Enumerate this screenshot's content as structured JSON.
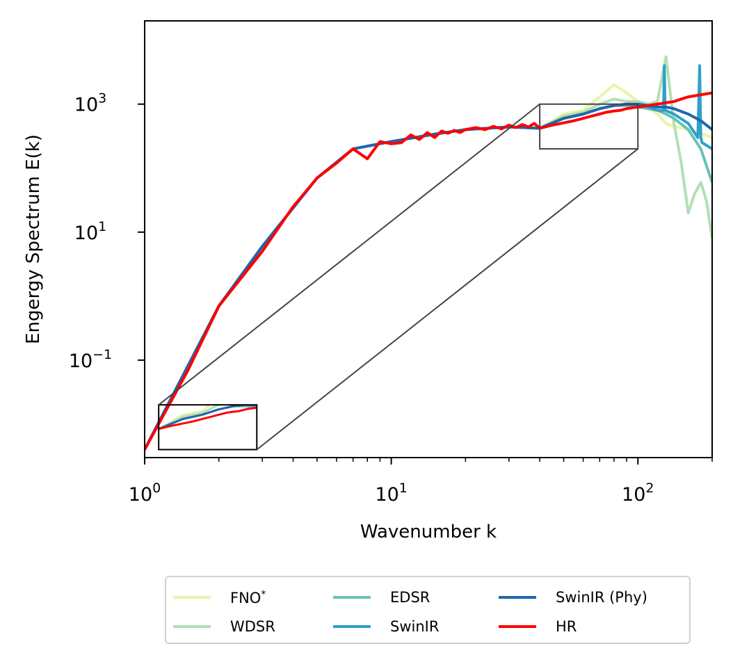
{
  "chart_data": {
    "type": "line",
    "xlabel": "Wavenumber k",
    "ylabel": "Engergy Spectrum E(k)",
    "xscale": "log",
    "yscale": "log",
    "xlim": [
      1,
      200
    ],
    "ylim": [
      0.003,
      20000
    ],
    "x_ticks": [
      {
        "value": 1,
        "base": "10",
        "exp": "0"
      },
      {
        "value": 10,
        "base": "10",
        "exp": "1"
      },
      {
        "value": 100,
        "base": "10",
        "exp": "2"
      }
    ],
    "y_ticks": [
      {
        "value": 0.1,
        "base": "10",
        "exp": "−1"
      },
      {
        "value": 10,
        "base": "10",
        "exp": "1"
      },
      {
        "value": 1000,
        "base": "10",
        "exp": "3"
      }
    ],
    "grid": false,
    "legend_placement": "below",
    "zoom_box": {
      "x": [
        40,
        100
      ],
      "y": [
        200,
        1000
      ]
    },
    "zoom_inset": {
      "x": [
        1.14,
        2.85
      ],
      "y": [
        0.004,
        0.02
      ]
    },
    "series": [
      {
        "name": "FNO",
        "name_sup": "*",
        "color": "#e8f5a8",
        "width": 4,
        "x": [
          1,
          2,
          3,
          5,
          7,
          10,
          15,
          20,
          30,
          40,
          50,
          60,
          70,
          80,
          90,
          100,
          110,
          120,
          130,
          140,
          160,
          180,
          200
        ],
        "y": [
          0.004,
          0.7,
          6,
          70,
          200,
          260,
          340,
          400,
          440,
          420,
          700,
          800,
          1300,
          2000,
          1500,
          1100,
          900,
          700,
          500,
          450,
          400,
          350,
          300
        ]
      },
      {
        "name": "WDSR",
        "color": "#b3dfb4",
        "width": 4,
        "x": [
          1,
          2,
          3,
          5,
          7,
          10,
          15,
          20,
          30,
          40,
          50,
          60,
          70,
          80,
          90,
          100,
          110,
          120,
          130,
          140,
          150,
          160,
          170,
          180,
          190,
          200
        ],
        "y": [
          0.004,
          0.7,
          6,
          70,
          200,
          260,
          340,
          400,
          440,
          420,
          650,
          750,
          1000,
          1200,
          1100,
          1100,
          1000,
          1100,
          5500,
          500,
          120,
          20,
          40,
          60,
          30,
          8
        ]
      },
      {
        "name": "EDSR",
        "color": "#66c2b8",
        "width": 4,
        "x": [
          1,
          2,
          3,
          5,
          7,
          10,
          15,
          20,
          30,
          40,
          50,
          60,
          70,
          80,
          90,
          100,
          110,
          120,
          130,
          140,
          160,
          180,
          200
        ],
        "y": [
          0.004,
          0.7,
          6,
          70,
          200,
          260,
          340,
          400,
          440,
          420,
          600,
          700,
          850,
          950,
          950,
          900,
          850,
          800,
          700,
          600,
          400,
          200,
          60
        ]
      },
      {
        "name": "SwinIR",
        "color": "#2fa0c8",
        "width": 4,
        "x": [
          1,
          2,
          3,
          5,
          7,
          10,
          15,
          20,
          30,
          40,
          50,
          60,
          70,
          80,
          90,
          100,
          110,
          120,
          127,
          128,
          129,
          140,
          160,
          175,
          178,
          180,
          182,
          200
        ],
        "y": [
          0.004,
          0.7,
          6,
          70,
          200,
          260,
          340,
          400,
          440,
          420,
          600,
          700,
          850,
          950,
          1000,
          950,
          900,
          800,
          800,
          4000,
          800,
          700,
          500,
          300,
          4000,
          300,
          250,
          200
        ]
      },
      {
        "name": "SwinIR (Phy)",
        "color": "#2166ac",
        "width": 4,
        "x": [
          1,
          2,
          3,
          5,
          7,
          10,
          15,
          20,
          30,
          40,
          50,
          60,
          70,
          80,
          90,
          100,
          110,
          120,
          130,
          140,
          160,
          180,
          200
        ],
        "y": [
          0.004,
          0.7,
          6,
          70,
          200,
          260,
          340,
          400,
          440,
          420,
          600,
          700,
          850,
          950,
          1000,
          1000,
          950,
          900,
          900,
          850,
          700,
          550,
          400
        ]
      },
      {
        "name": "HR",
        "color": "#ff0000",
        "width": 4,
        "x": [
          1,
          1.5,
          2,
          3,
          4,
          5,
          6,
          7,
          8,
          9,
          10,
          11,
          12,
          13,
          14,
          15,
          16,
          17,
          18,
          19,
          20,
          22,
          24,
          26,
          28,
          30,
          32,
          34,
          36,
          38,
          40,
          45,
          50,
          55,
          60,
          65,
          70,
          75,
          80,
          85,
          90,
          95,
          100,
          110,
          120,
          130,
          140,
          150,
          160,
          170,
          180,
          190,
          200
        ],
        "y": [
          0.004,
          0.07,
          0.7,
          5,
          25,
          70,
          120,
          200,
          140,
          260,
          240,
          250,
          330,
          280,
          360,
          300,
          380,
          350,
          390,
          360,
          400,
          430,
          400,
          450,
          410,
          470,
          430,
          480,
          440,
          500,
          420,
          470,
          510,
          550,
          600,
          650,
          700,
          750,
          780,
          800,
          850,
          880,
          900,
          950,
          1000,
          1050,
          1100,
          1200,
          1300,
          1350,
          1400,
          1450,
          1500
        ]
      }
    ]
  }
}
